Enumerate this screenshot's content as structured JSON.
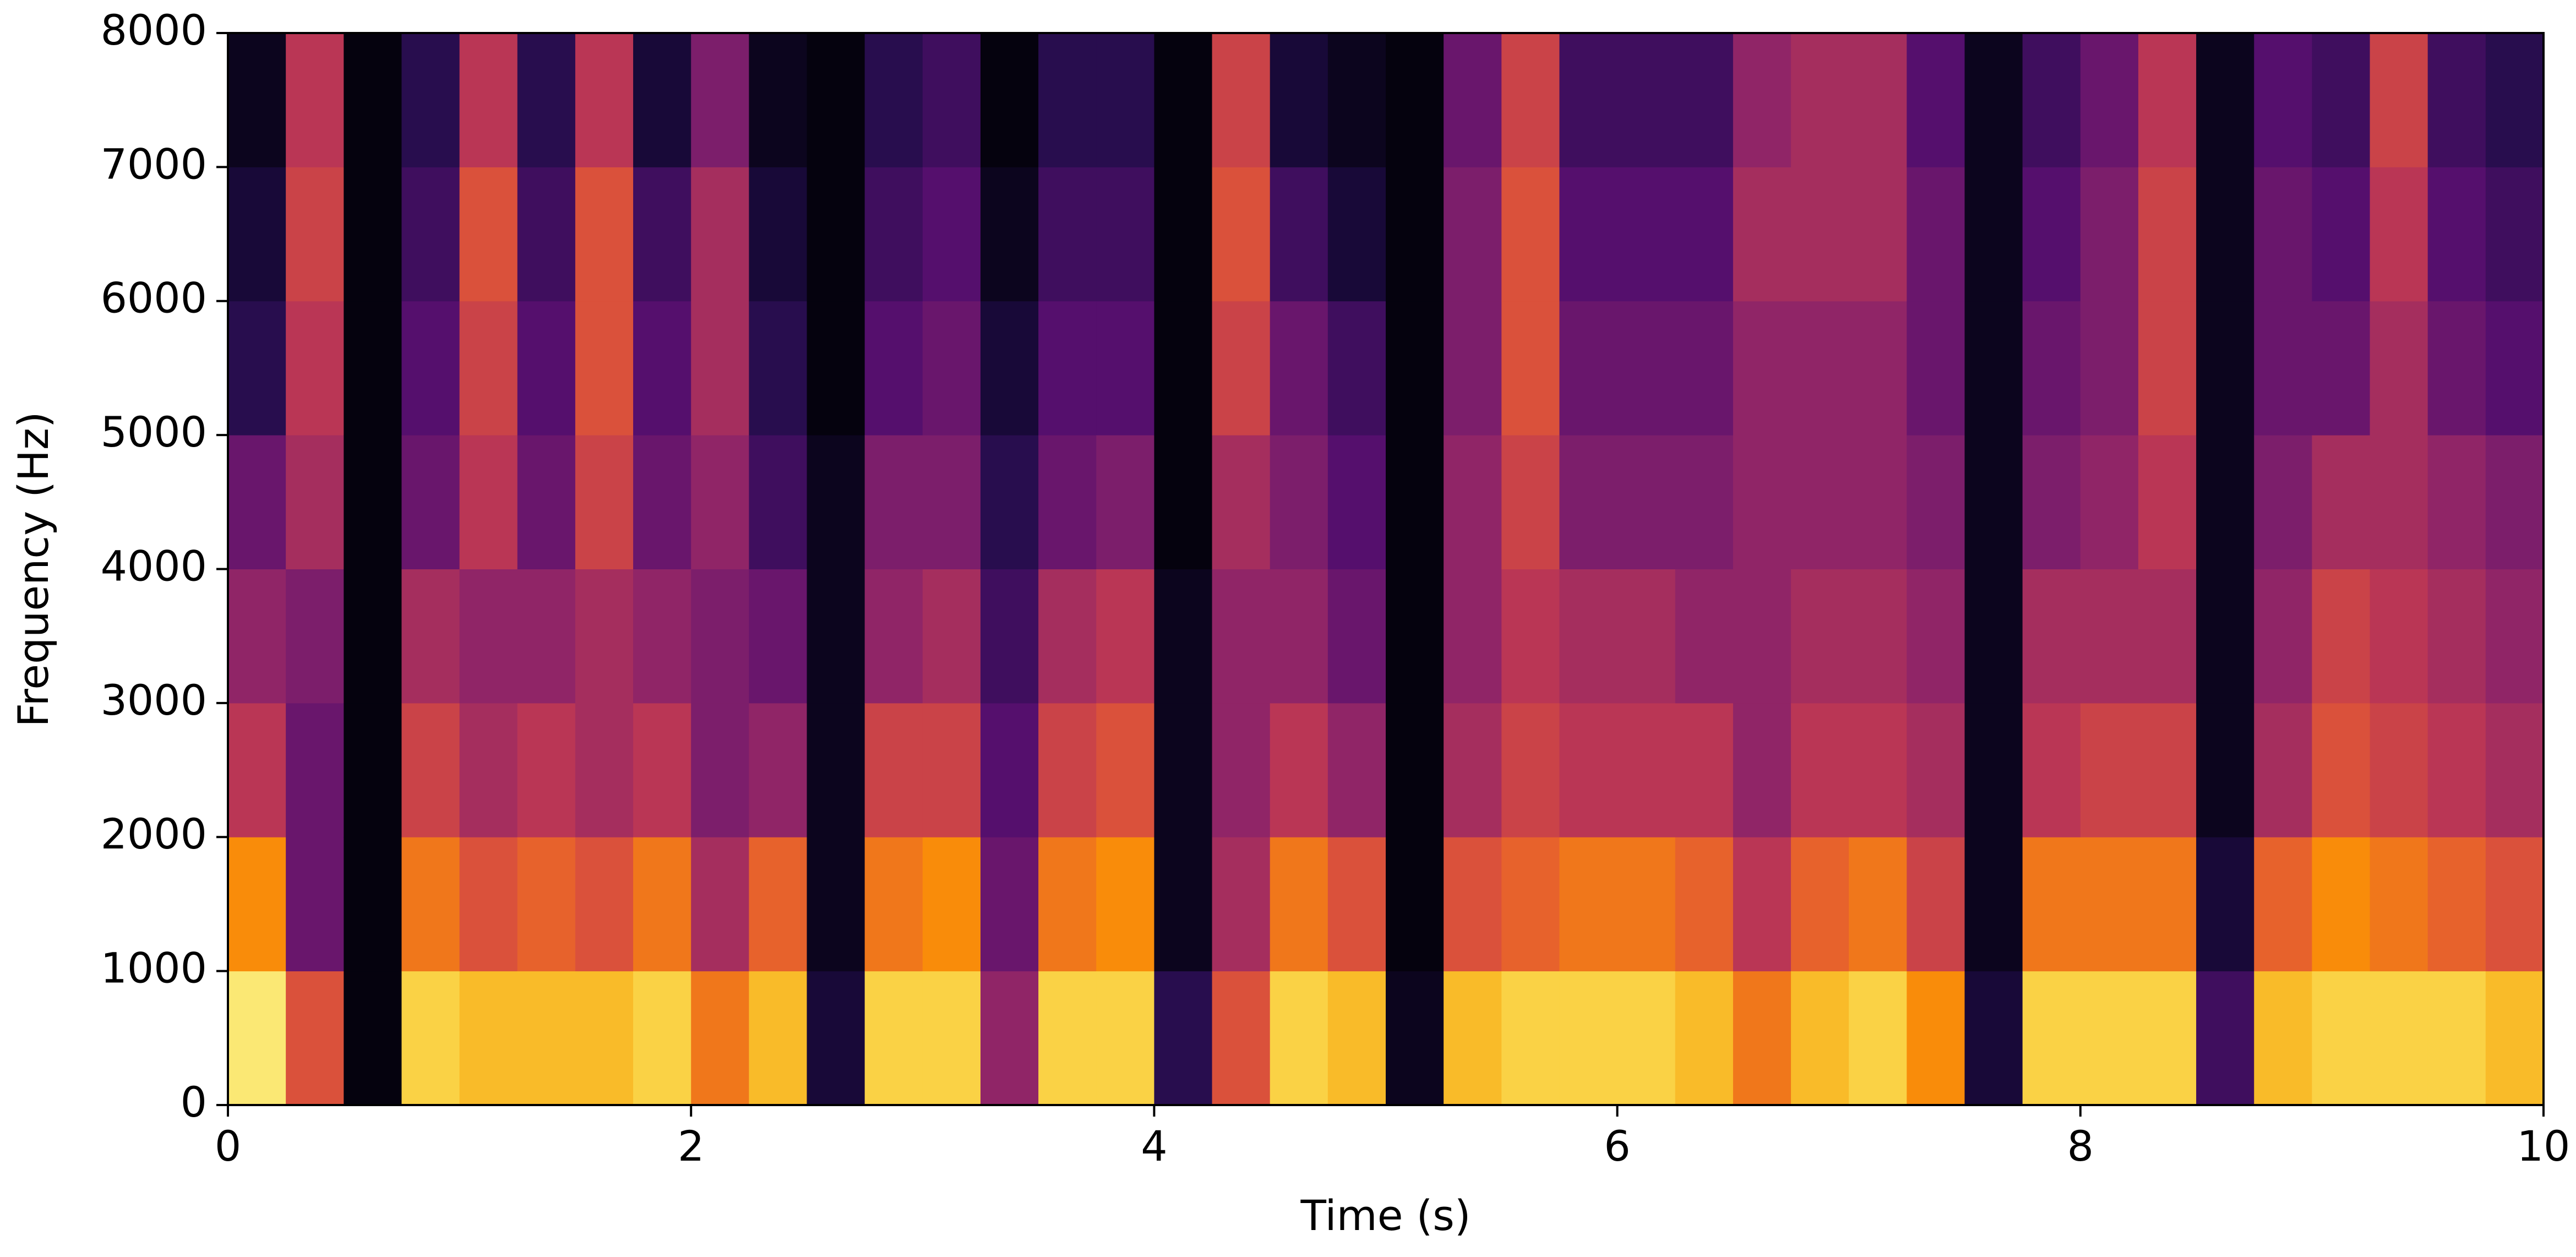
{
  "chart_data": {
    "type": "spectrogram",
    "xlabel": "Time (s)",
    "ylabel": "Frequency (Hz)",
    "xlim": [
      0,
      10
    ],
    "ylim": [
      0,
      8000
    ],
    "xticks": [
      0,
      2,
      4,
      6,
      8,
      10
    ],
    "yticks": [
      0,
      1000,
      2000,
      3000,
      4000,
      5000,
      6000,
      7000,
      8000
    ],
    "colormap": "inferno",
    "x": [
      0.125,
      0.375,
      0.625,
      0.875,
      1.125,
      1.375,
      1.625,
      1.875,
      2.125,
      2.375,
      2.625,
      2.875,
      3.125,
      3.375,
      3.625,
      3.875,
      4.125,
      4.375,
      4.625,
      4.875,
      5.125,
      5.375,
      5.625,
      5.875,
      6.125,
      6.375,
      6.625,
      6.875,
      7.125,
      7.375,
      7.625,
      7.875,
      8.125,
      8.375,
      8.625,
      8.875,
      9.125,
      9.375,
      9.625,
      9.875
    ],
    "y": [
      500,
      1500,
      2500,
      3500,
      4500,
      5500,
      6500,
      7500
    ],
    "values": [
      [
        0.95,
        0.75,
        0.5,
        0.4,
        0.3,
        0.15,
        0.1,
        0.05
      ],
      [
        0.6,
        0.3,
        0.3,
        0.35,
        0.45,
        0.5,
        0.55,
        0.5
      ],
      [
        0.02,
        0.02,
        0.02,
        0.02,
        0.02,
        0.02,
        0.02,
        0.02
      ],
      [
        0.9,
        0.7,
        0.55,
        0.45,
        0.3,
        0.25,
        0.2,
        0.15
      ],
      [
        0.85,
        0.6,
        0.45,
        0.4,
        0.5,
        0.55,
        0.6,
        0.5
      ],
      [
        0.85,
        0.65,
        0.5,
        0.4,
        0.3,
        0.25,
        0.2,
        0.15
      ],
      [
        0.85,
        0.6,
        0.45,
        0.45,
        0.55,
        0.6,
        0.6,
        0.5
      ],
      [
        0.9,
        0.7,
        0.5,
        0.4,
        0.3,
        0.25,
        0.2,
        0.1
      ],
      [
        0.7,
        0.45,
        0.35,
        0.35,
        0.4,
        0.45,
        0.45,
        0.35
      ],
      [
        0.85,
        0.65,
        0.4,
        0.3,
        0.2,
        0.15,
        0.1,
        0.05
      ],
      [
        0.1,
        0.05,
        0.05,
        0.05,
        0.05,
        0.02,
        0.02,
        0.02
      ],
      [
        0.9,
        0.7,
        0.55,
        0.4,
        0.35,
        0.25,
        0.2,
        0.15
      ],
      [
        0.9,
        0.75,
        0.55,
        0.45,
        0.35,
        0.3,
        0.25,
        0.2
      ],
      [
        0.4,
        0.3,
        0.25,
        0.2,
        0.15,
        0.1,
        0.05,
        0.02
      ],
      [
        0.9,
        0.7,
        0.55,
        0.45,
        0.3,
        0.25,
        0.2,
        0.15
      ],
      [
        0.9,
        0.75,
        0.6,
        0.5,
        0.35,
        0.25,
        0.2,
        0.15
      ],
      [
        0.15,
        0.05,
        0.05,
        0.05,
        0.02,
        0.02,
        0.02,
        0.02
      ],
      [
        0.6,
        0.45,
        0.4,
        0.4,
        0.45,
        0.55,
        0.6,
        0.55
      ],
      [
        0.9,
        0.7,
        0.5,
        0.4,
        0.35,
        0.3,
        0.2,
        0.1
      ],
      [
        0.85,
        0.6,
        0.4,
        0.3,
        0.25,
        0.2,
        0.1,
        0.05
      ],
      [
        0.05,
        0.02,
        0.02,
        0.02,
        0.02,
        0.02,
        0.02,
        0.02
      ],
      [
        0.85,
        0.6,
        0.45,
        0.4,
        0.4,
        0.35,
        0.35,
        0.3
      ],
      [
        0.9,
        0.65,
        0.55,
        0.5,
        0.55,
        0.6,
        0.6,
        0.55
      ],
      [
        0.9,
        0.7,
        0.5,
        0.45,
        0.35,
        0.3,
        0.25,
        0.2
      ],
      [
        0.9,
        0.7,
        0.5,
        0.45,
        0.35,
        0.3,
        0.25,
        0.2
      ],
      [
        0.85,
        0.65,
        0.5,
        0.4,
        0.35,
        0.3,
        0.25,
        0.2
      ],
      [
        0.7,
        0.5,
        0.4,
        0.4,
        0.4,
        0.4,
        0.45,
        0.4
      ],
      [
        0.85,
        0.65,
        0.5,
        0.45,
        0.4,
        0.4,
        0.45,
        0.45
      ],
      [
        0.9,
        0.7,
        0.5,
        0.45,
        0.4,
        0.4,
        0.45,
        0.45
      ],
      [
        0.75,
        0.55,
        0.45,
        0.4,
        0.35,
        0.3,
        0.3,
        0.25
      ],
      [
        0.1,
        0.05,
        0.05,
        0.05,
        0.05,
        0.05,
        0.05,
        0.05
      ],
      [
        0.9,
        0.7,
        0.5,
        0.45,
        0.35,
        0.3,
        0.25,
        0.2
      ],
      [
        0.9,
        0.7,
        0.55,
        0.45,
        0.4,
        0.35,
        0.35,
        0.3
      ],
      [
        0.9,
        0.7,
        0.55,
        0.45,
        0.5,
        0.55,
        0.55,
        0.5
      ],
      [
        0.2,
        0.1,
        0.05,
        0.05,
        0.05,
        0.05,
        0.05,
        0.05
      ],
      [
        0.85,
        0.65,
        0.45,
        0.4,
        0.35,
        0.3,
        0.3,
        0.25
      ],
      [
        0.9,
        0.75,
        0.6,
        0.55,
        0.45,
        0.3,
        0.25,
        0.2
      ],
      [
        0.9,
        0.7,
        0.55,
        0.5,
        0.45,
        0.45,
        0.5,
        0.55
      ],
      [
        0.9,
        0.65,
        0.5,
        0.45,
        0.4,
        0.3,
        0.25,
        0.2
      ],
      [
        0.85,
        0.6,
        0.45,
        0.4,
        0.35,
        0.25,
        0.2,
        0.15
      ]
    ]
  }
}
